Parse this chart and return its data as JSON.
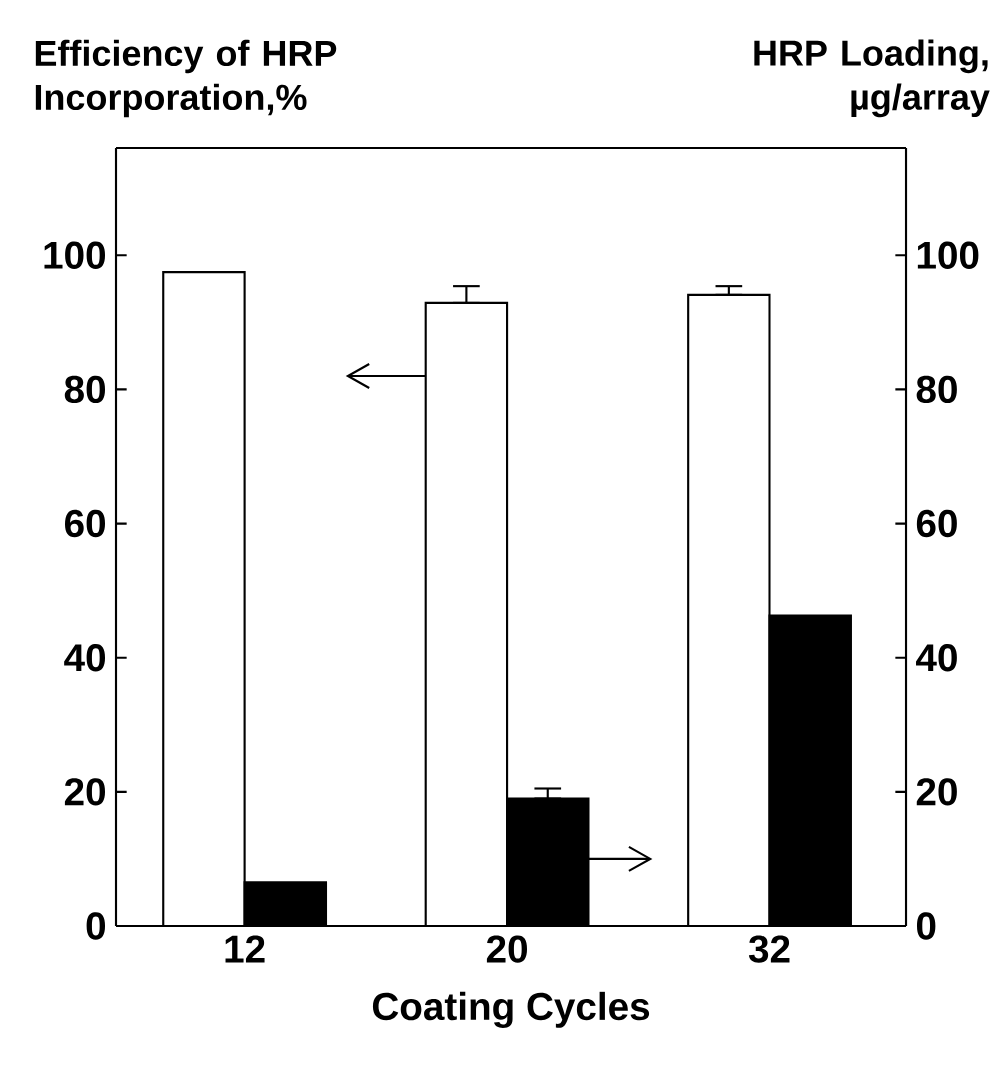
{
  "chart_data": {
    "type": "bar",
    "ylabel": "Efficiency of HRP Incorporation,%",
    "y2label": "HRP Loading, µg/array",
    "xlabel": "Coating Cycles",
    "categories": [
      "12",
      "20",
      "32"
    ],
    "series": [
      {
        "color": "#ffffff",
        "values": [
          97.5,
          92.9,
          94.1
        ],
        "errors": [
          null,
          [
            92.9,
            95.4
          ],
          [
            94.1,
            95.4
          ]
        ]
      },
      {
        "color": "#000000",
        "axis": "y2",
        "values": [
          6.5,
          19,
          46.3
        ],
        "errors": [
          null,
          [
            19,
            20.5
          ],
          null
        ]
      }
    ],
    "ylim": [
      0,
      116
    ],
    "yticks": [
      0,
      20,
      40,
      60,
      80,
      100
    ],
    "y2lim": [
      0,
      116
    ],
    "y2ticks": [
      0,
      20,
      40,
      60,
      80,
      100
    ],
    "grid": false
  }
}
